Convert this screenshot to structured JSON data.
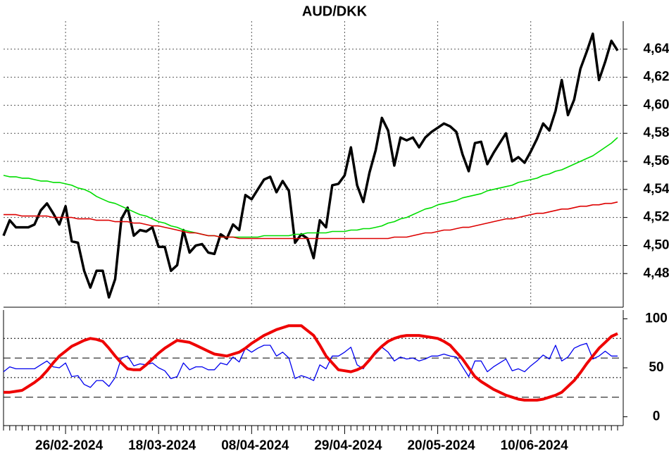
{
  "chart_data": [
    {
      "type": "line",
      "title": "AUD/DKK",
      "ylim": [
        4.456,
        4.66
      ],
      "yticks": [
        {
          "value": 4.48,
          "label": "4,48"
        },
        {
          "value": 4.5,
          "label": "4,50"
        },
        {
          "value": 4.52,
          "label": "4,52"
        },
        {
          "value": 4.54,
          "label": "4,54"
        },
        {
          "value": 4.56,
          "label": "4,56"
        },
        {
          "value": 4.58,
          "label": "4,58"
        },
        {
          "value": 4.6,
          "label": "4,60"
        },
        {
          "value": 4.62,
          "label": "4,62"
        },
        {
          "value": 4.64,
          "label": "4,64"
        }
      ],
      "grid": true,
      "series": [
        {
          "color": "#000000",
          "values": [
            4.507,
            4.518,
            4.513,
            4.513,
            4.513,
            4.515,
            4.525,
            4.53,
            4.523,
            4.515,
            4.528,
            4.503,
            4.502,
            4.482,
            4.47,
            4.482,
            4.482,
            4.463,
            4.476,
            4.519,
            4.527,
            4.507,
            4.511,
            4.51,
            4.513,
            4.499,
            4.499,
            4.482,
            4.486,
            4.511,
            4.495,
            4.5,
            4.501,
            4.495,
            4.494,
            4.508,
            4.505,
            4.515,
            4.511,
            4.536,
            4.533,
            4.54,
            4.547,
            4.549,
            4.538,
            4.546,
            4.539,
            4.502,
            4.508,
            4.505,
            4.491,
            4.518,
            4.513,
            4.543,
            4.544,
            4.55,
            4.57,
            4.543,
            4.531,
            4.552,
            4.568,
            4.591,
            4.582,
            4.557,
            4.577,
            4.575,
            4.577,
            4.57,
            4.577,
            4.581,
            4.584,
            4.587,
            4.585,
            4.581,
            4.565,
            4.553,
            4.573,
            4.574,
            4.558,
            4.566,
            4.573,
            4.58,
            4.56,
            4.563,
            4.559,
            4.567,
            4.576,
            4.587,
            4.582,
            4.596,
            4.618,
            4.593,
            4.604,
            4.626,
            4.638,
            4.651,
            4.618,
            4.631,
            4.646,
            4.639
          ]
        },
        {
          "color": "#00dd00",
          "values": [
            4.55,
            4.549,
            4.549,
            4.548,
            4.548,
            4.547,
            4.546,
            4.546,
            4.545,
            4.545,
            4.544,
            4.543,
            4.541,
            4.54,
            4.538,
            4.535,
            4.533,
            4.531,
            4.53,
            4.528,
            4.526,
            4.524,
            4.522,
            4.521,
            4.519,
            4.517,
            4.516,
            4.514,
            4.513,
            4.511,
            4.51,
            4.509,
            4.508,
            4.507,
            4.507,
            4.506,
            4.506,
            4.506,
            4.506,
            4.506,
            4.506,
            4.506,
            4.507,
            4.507,
            4.507,
            4.507,
            4.507,
            4.508,
            4.508,
            4.509,
            4.509,
            4.509,
            4.509,
            4.51,
            4.51,
            4.51,
            4.511,
            4.511,
            4.512,
            4.512,
            4.513,
            4.514,
            4.516,
            4.517,
            4.519,
            4.52,
            4.522,
            4.524,
            4.526,
            4.527,
            4.529,
            4.53,
            4.531,
            4.532,
            4.534,
            4.535,
            4.536,
            4.537,
            4.539,
            4.54,
            4.541,
            4.542,
            4.543,
            4.545,
            4.546,
            4.547,
            4.548,
            4.55,
            4.551,
            4.553,
            4.554,
            4.556,
            4.558,
            4.56,
            4.562,
            4.564,
            4.567,
            4.57,
            4.573,
            4.577
          ]
        },
        {
          "color": "#dd0000",
          "values": [
            4.522,
            4.522,
            4.522,
            4.521,
            4.521,
            4.521,
            4.521,
            4.521,
            4.52,
            4.52,
            4.52,
            4.52,
            4.519,
            4.519,
            4.519,
            4.518,
            4.518,
            4.518,
            4.517,
            4.517,
            4.517,
            4.516,
            4.516,
            4.515,
            4.514,
            4.514,
            4.513,
            4.512,
            4.511,
            4.51,
            4.509,
            4.509,
            4.508,
            4.507,
            4.507,
            4.506,
            4.506,
            4.506,
            4.505,
            4.505,
            4.505,
            4.505,
            4.505,
            4.505,
            4.505,
            4.505,
            4.505,
            4.505,
            4.505,
            4.505,
            4.505,
            4.505,
            4.505,
            4.505,
            4.505,
            4.505,
            4.505,
            4.505,
            4.505,
            4.505,
            4.505,
            4.505,
            4.505,
            4.506,
            4.506,
            4.506,
            4.507,
            4.508,
            4.509,
            4.509,
            4.51,
            4.511,
            4.511,
            4.512,
            4.513,
            4.513,
            4.514,
            4.515,
            4.516,
            4.517,
            4.518,
            4.519,
            4.519,
            4.52,
            4.521,
            4.522,
            4.523,
            4.523,
            4.524,
            4.525,
            4.526,
            4.526,
            4.527,
            4.528,
            4.528,
            4.529,
            4.529,
            4.53,
            4.53,
            4.531
          ]
        }
      ]
    },
    {
      "type": "line",
      "categories": [
        null,
        null,
        null,
        null,
        null,
        null,
        null,
        null,
        null,
        null,
        "26/02-2024",
        null,
        null,
        null,
        null,
        null,
        null,
        null,
        null,
        null,
        null,
        null,
        null,
        null,
        null,
        "18/03-2024",
        null,
        null,
        null,
        null,
        null,
        null,
        null,
        null,
        null,
        null,
        null,
        null,
        null,
        null,
        "08/04-2024",
        null,
        null,
        null,
        null,
        null,
        null,
        null,
        null,
        null,
        null,
        null,
        null,
        null,
        null,
        "29/04-2024",
        null,
        null,
        null,
        null,
        null,
        null,
        null,
        null,
        null,
        null,
        null,
        null,
        null,
        null,
        "20/05-2024",
        null,
        null,
        null,
        null,
        null,
        null,
        null,
        null,
        null,
        null,
        null,
        null,
        null,
        null,
        "10/06-2024",
        null,
        null,
        null,
        null,
        null,
        null,
        null,
        null,
        null,
        null,
        null,
        null,
        null,
        null
      ],
      "ylim": [
        -9,
        109
      ],
      "yticks": [
        0,
        50,
        100
      ],
      "reference_lines": [
        {
          "value": 80,
          "style": "dotted"
        },
        {
          "value": 60,
          "style": "dashed"
        },
        {
          "value": 40,
          "style": "dotted"
        },
        {
          "value": 20,
          "style": "dashed"
        }
      ],
      "series": [
        {
          "color": "#0000ee",
          "values": [
            46,
            51,
            49,
            49,
            49,
            49,
            53,
            57,
            51,
            50,
            55,
            41,
            42,
            33,
            30,
            37,
            37,
            31,
            40,
            60,
            62,
            52,
            54,
            53,
            55,
            50,
            47,
            39,
            41,
            55,
            48,
            51,
            51,
            48,
            48,
            55,
            53,
            61,
            56,
            70,
            66,
            70,
            73,
            73,
            62,
            66,
            60,
            39,
            42,
            40,
            37,
            53,
            49,
            62,
            62,
            66,
            71,
            53,
            49,
            59,
            64,
            71,
            66,
            57,
            61,
            59,
            60,
            57,
            59,
            62,
            62,
            64,
            62,
            61,
            51,
            41,
            57,
            57,
            46,
            51,
            55,
            59,
            47,
            49,
            46,
            52,
            57,
            63,
            59,
            73,
            57,
            61,
            70,
            73,
            75,
            59,
            62,
            67,
            62,
            62
          ]
        },
        {
          "color": "#ee0000",
          "values": [
            25,
            25,
            26,
            27,
            31,
            35,
            40,
            47,
            55,
            62,
            67,
            72,
            75,
            78,
            80,
            79,
            77,
            70,
            62,
            55,
            49,
            48,
            48,
            53,
            59,
            65,
            70,
            74,
            78,
            77,
            76,
            73,
            70,
            67,
            64,
            63,
            62,
            64,
            66,
            70,
            75,
            79,
            83,
            86,
            89,
            91,
            93,
            93,
            93,
            88,
            83,
            73,
            62,
            55,
            48,
            47,
            46,
            48,
            51,
            58,
            66,
            72,
            77,
            80,
            82,
            83,
            83,
            83,
            82,
            81,
            80,
            77,
            73,
            66,
            59,
            50,
            41,
            36,
            32,
            28,
            25,
            22,
            20,
            18,
            17,
            17,
            17,
            18,
            20,
            22,
            25,
            31,
            37,
            45,
            54,
            62,
            70,
            76,
            82,
            85
          ]
        }
      ]
    }
  ]
}
